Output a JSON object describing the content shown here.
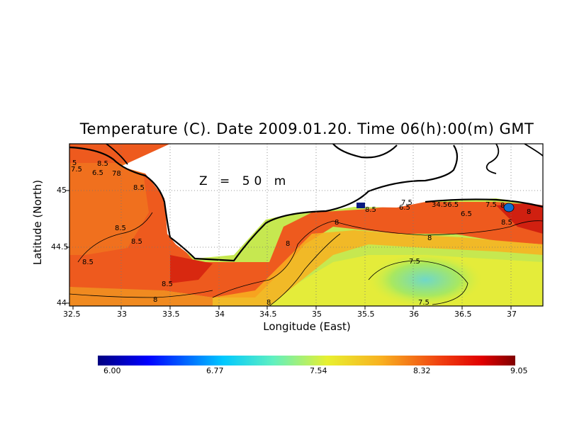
{
  "title": "Temperature (C). Date 2009.01.20. Time 06(h):00(m) GMT",
  "depth_label": "Z = 50 m",
  "x_axis": {
    "label": "Longitude (East)",
    "ticks": [
      "32.5",
      "33",
      "33.5",
      "34",
      "34.5",
      "35",
      "35.5",
      "36",
      "36.5",
      "37"
    ]
  },
  "y_axis": {
    "label": "Latitude (North)",
    "ticks": [
      "45",
      "44.5",
      "44"
    ]
  },
  "colorbar": {
    "labels": [
      "6.00",
      "6.77",
      "7.54",
      "8.32",
      "9.05"
    ]
  },
  "contour_labels": [
    "8.5",
    "8.5",
    "8.5",
    "8.5",
    "8.5",
    "8.5",
    "8.5",
    "8.5",
    "8",
    "8",
    "8",
    "8",
    "8",
    "7.5",
    "7.5",
    "7.5",
    "7.5",
    "7.5",
    "78",
    "6.5",
    "34.56.5",
    "6.5",
    "5",
    "6.5",
    "8",
    "8"
  ],
  "colors": {
    "warm": "#e8501c",
    "hot": "#c81a0a",
    "mid": "#f5a020",
    "yellow": "#f0e040",
    "lime": "#b6e84a",
    "cyan": "#78ddc0",
    "land": "#ffffff",
    "coast": "#000000"
  }
}
